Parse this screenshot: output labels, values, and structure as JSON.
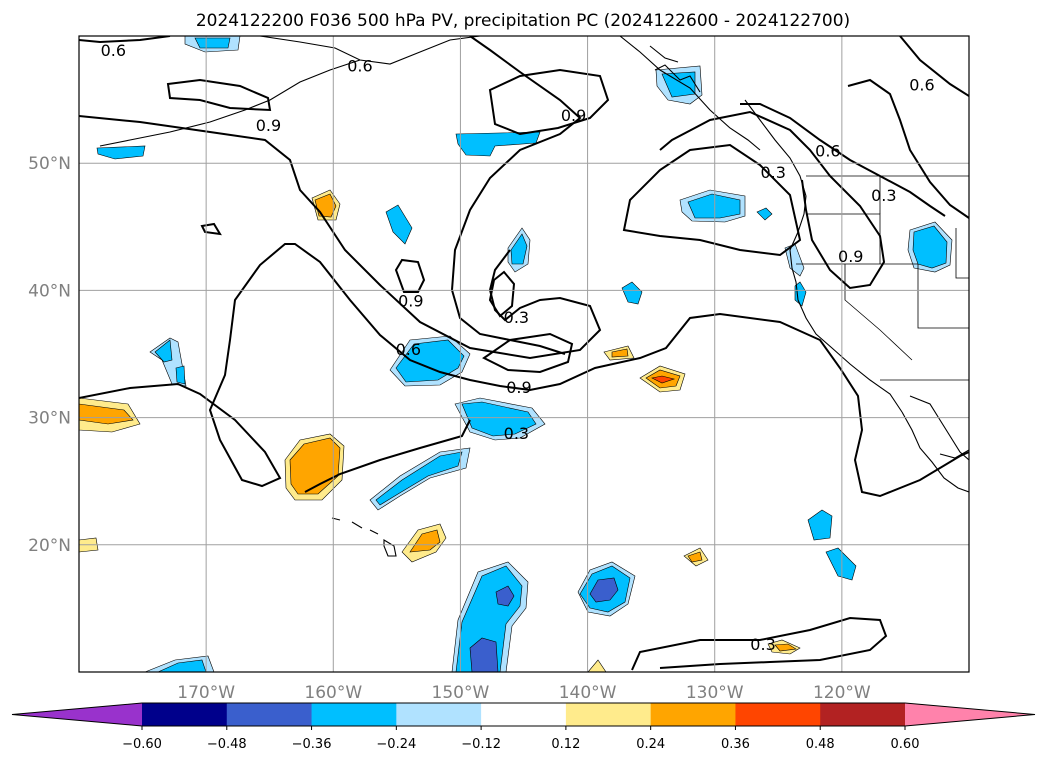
{
  "chart_data": {
    "type": "heatmap",
    "title": "2024122200 F036 500 hPa PV, precipitation PC (2024122600 - 2024122700)",
    "xlabel": "",
    "ylabel": "",
    "x_ticks": [
      {
        "value": -170,
        "label": "170°W"
      },
      {
        "value": -160,
        "label": "160°W"
      },
      {
        "value": -150,
        "label": "150°W"
      },
      {
        "value": -140,
        "label": "140°W"
      },
      {
        "value": -130,
        "label": "130°W"
      },
      {
        "value": -120,
        "label": "120°W"
      }
    ],
    "y_ticks": [
      {
        "value": 20,
        "label": "20°N"
      },
      {
        "value": 30,
        "label": "30°N"
      },
      {
        "value": 40,
        "label": "40°N"
      },
      {
        "value": 50,
        "label": "50°N"
      }
    ],
    "xlim": [
      -180,
      -110
    ],
    "ylim": [
      10,
      60
    ],
    "grid": true,
    "colorbar": {
      "levels": [
        -0.6,
        -0.48,
        -0.36,
        -0.24,
        -0.12,
        0.12,
        0.24,
        0.36,
        0.48,
        0.6
      ],
      "labels": [
        "−0.60",
        "−0.48",
        "−0.36",
        "−0.24",
        "−0.12",
        "0.12",
        "0.24",
        "0.36",
        "0.48",
        "0.60"
      ],
      "colors": [
        "#9932cc",
        "#00008b",
        "#3a5fcd",
        "#00bfff",
        "#b0e2ff",
        "#ffffff",
        "#ffeb8c",
        "#ffa500",
        "#ff4500",
        "#b22222",
        "#ff82ab"
      ]
    },
    "contour_labels": [
      {
        "text": "0.6",
        "lon": -177.3,
        "lat": 58.9
      },
      {
        "text": "0.6",
        "lon": -157.9,
        "lat": 57.7
      },
      {
        "text": "0.9",
        "lon": -165.1,
        "lat": 53.0
      },
      {
        "text": "0.9",
        "lon": -141.1,
        "lat": 53.8
      },
      {
        "text": "0.6",
        "lon": -113.7,
        "lat": 56.2
      },
      {
        "text": "0.6",
        "lon": -121.1,
        "lat": 51.0
      },
      {
        "text": "0.3",
        "lon": -125.4,
        "lat": 49.3
      },
      {
        "text": "0.3",
        "lon": -116.7,
        "lat": 47.5
      },
      {
        "text": "0.9",
        "lon": -119.3,
        "lat": 42.7
      },
      {
        "text": "0.9",
        "lon": -153.9,
        "lat": 39.2
      },
      {
        "text": "0.3",
        "lon": -145.6,
        "lat": 37.9
      },
      {
        "text": "0.6",
        "lon": -154.1,
        "lat": 35.4
      },
      {
        "text": "0.9",
        "lon": -145.4,
        "lat": 32.4
      },
      {
        "text": "0.3",
        "lon": -145.6,
        "lat": 28.8
      },
      {
        "text": "0.3",
        "lon": -126.2,
        "lat": 12.2
      }
    ]
  }
}
